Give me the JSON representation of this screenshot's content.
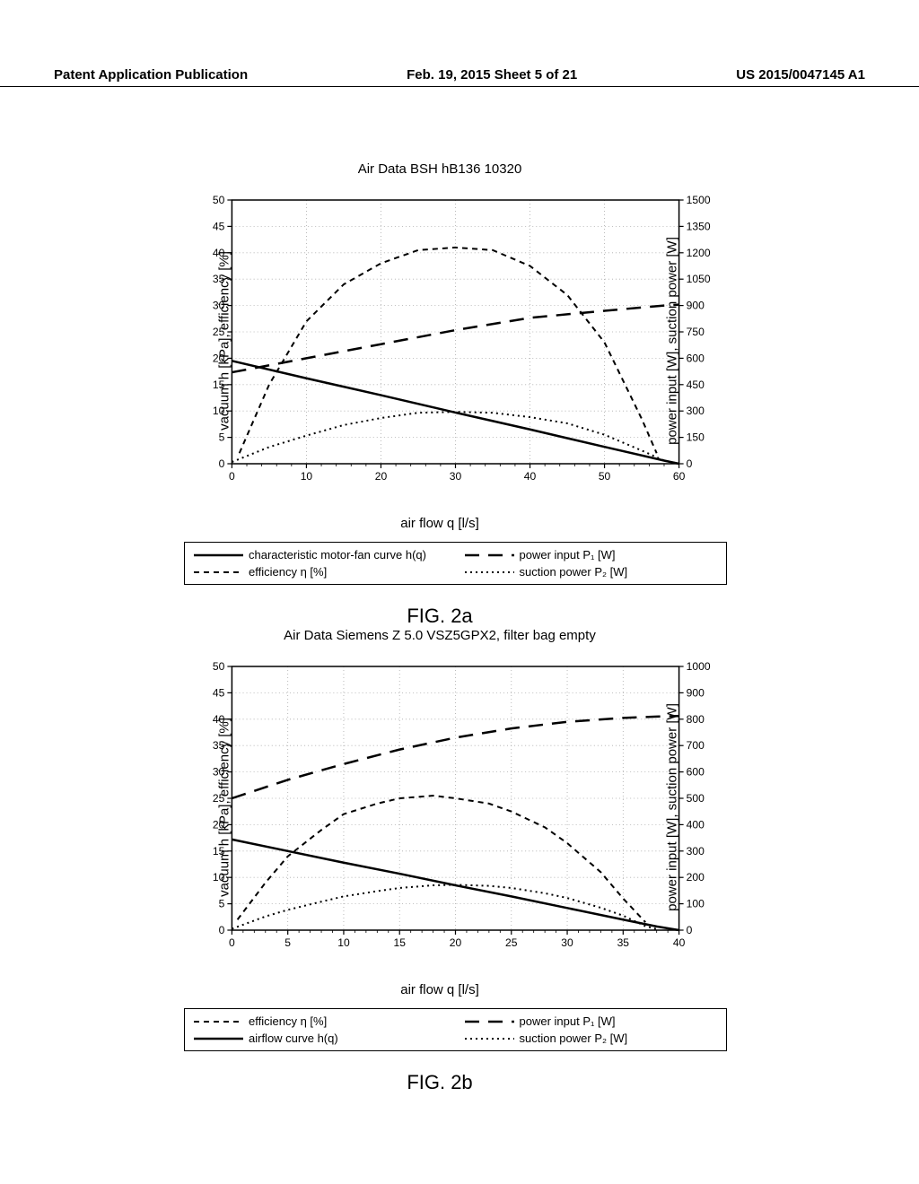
{
  "header": {
    "left": "Patent Application Publication",
    "center": "Feb. 19, 2015  Sheet 5 of 21",
    "right": "US 2015/0047145 A1"
  },
  "chart_a": {
    "title": "Air Data BSH hB136 10320",
    "fig_label": "FIG. 2a",
    "x_axis": {
      "label": "air flow q [l/s]",
      "min": 0,
      "max": 60,
      "ticks": [
        0,
        10,
        20,
        30,
        40,
        50,
        60
      ]
    },
    "y_left": {
      "label": "vacuum h [kPa], efficiency [%]",
      "min": 0,
      "max": 50,
      "ticks": [
        0,
        5,
        10,
        15,
        20,
        25,
        30,
        35,
        40,
        45,
        50
      ]
    },
    "y_right": {
      "label": "power input [W], suction power [W]",
      "min": 0,
      "max": 1500,
      "ticks": [
        0,
        150,
        300,
        450,
        600,
        750,
        900,
        1050,
        1200,
        1350,
        1500
      ]
    },
    "colors": {
      "line": "#000000",
      "grid": "#aaaaaa",
      "background": "#ffffff"
    },
    "series": {
      "hq": {
        "label": "characteristic motor-fan curve h(q)",
        "dash": "solid",
        "width": 2.5,
        "yscale": "left",
        "data": [
          [
            0,
            19.5
          ],
          [
            10,
            16.2
          ],
          [
            20,
            13
          ],
          [
            30,
            9.7
          ],
          [
            40,
            6.5
          ],
          [
            50,
            3.2
          ],
          [
            58,
            0.6
          ],
          [
            60,
            0
          ]
        ]
      },
      "efficiency": {
        "label": "efficiency η [%]",
        "dash": "short",
        "width": 2,
        "yscale": "left",
        "data": [
          [
            1,
            2
          ],
          [
            5,
            15
          ],
          [
            10,
            27
          ],
          [
            15,
            34
          ],
          [
            20,
            38
          ],
          [
            25,
            40.5
          ],
          [
            30,
            41
          ],
          [
            35,
            40.5
          ],
          [
            40,
            37.5
          ],
          [
            45,
            32
          ],
          [
            50,
            23
          ],
          [
            55,
            8.5
          ],
          [
            57,
            2
          ]
        ]
      },
      "power_input": {
        "label": "power input P₁ [W]",
        "dash": "long",
        "width": 2.5,
        "yscale": "right",
        "data": [
          [
            0,
            520
          ],
          [
            10,
            600
          ],
          [
            20,
            680
          ],
          [
            30,
            760
          ],
          [
            40,
            830
          ],
          [
            50,
            870
          ],
          [
            58,
            900
          ],
          [
            60,
            905
          ]
        ]
      },
      "suction_power": {
        "label": "suction power P₂ [W]",
        "dash": "dot",
        "width": 2,
        "yscale": "right",
        "data": [
          [
            0,
            10
          ],
          [
            5,
            95
          ],
          [
            10,
            160
          ],
          [
            15,
            220
          ],
          [
            20,
            260
          ],
          [
            25,
            290
          ],
          [
            30,
            295
          ],
          [
            35,
            290
          ],
          [
            40,
            265
          ],
          [
            45,
            230
          ],
          [
            50,
            165
          ],
          [
            55,
            75
          ],
          [
            58,
            18
          ],
          [
            60,
            0
          ]
        ]
      }
    },
    "legend_order": [
      "hq",
      "power_input",
      "efficiency",
      "suction_power"
    ]
  },
  "chart_b": {
    "title": "Air Data Siemens Z 5.0 VSZ5GPX2, filter bag empty",
    "fig_label": "FIG. 2b",
    "x_axis": {
      "label": "air flow q [l/s]",
      "min": 0,
      "max": 40,
      "ticks": [
        0,
        5,
        10,
        15,
        20,
        25,
        30,
        35,
        40
      ]
    },
    "y_left": {
      "label": "vacuum h [kPa], efficiency [%]",
      "min": 0,
      "max": 50,
      "ticks": [
        0,
        5,
        10,
        15,
        20,
        25,
        30,
        35,
        40,
        45,
        50
      ]
    },
    "y_right": {
      "label": "power input [W], suction power [W]",
      "min": 0,
      "max": 1000,
      "ticks": [
        0,
        100,
        200,
        300,
        400,
        500,
        600,
        700,
        800,
        900,
        1000
      ]
    },
    "colors": {
      "line": "#000000",
      "grid": "#aaaaaa",
      "background": "#ffffff"
    },
    "series": {
      "efficiency": {
        "label": "efficiency η [%]",
        "dash": "short",
        "width": 2,
        "yscale": "left",
        "data": [
          [
            0.5,
            2
          ],
          [
            3,
            9
          ],
          [
            5,
            14
          ],
          [
            8,
            19
          ],
          [
            10,
            22
          ],
          [
            13,
            24
          ],
          [
            15,
            25
          ],
          [
            18,
            25.5
          ],
          [
            20,
            25
          ],
          [
            23,
            24
          ],
          [
            25,
            22.5
          ],
          [
            28,
            19.5
          ],
          [
            30,
            16.5
          ],
          [
            33,
            11
          ],
          [
            35,
            6
          ],
          [
            37,
            1.5
          ]
        ]
      },
      "hq": {
        "label": "airflow curve h(q)",
        "dash": "solid",
        "width": 2.5,
        "yscale": "left",
        "data": [
          [
            0,
            17.2
          ],
          [
            5,
            15
          ],
          [
            10,
            12.8
          ],
          [
            15,
            10.7
          ],
          [
            20,
            8.5
          ],
          [
            25,
            6.4
          ],
          [
            30,
            4.2
          ],
          [
            35,
            2
          ],
          [
            38,
            0.7
          ],
          [
            40,
            0
          ]
        ]
      },
      "power_input": {
        "label": "power input P₁ [W]",
        "dash": "long",
        "width": 2.5,
        "yscale": "right",
        "data": [
          [
            0,
            500
          ],
          [
            5,
            570
          ],
          [
            10,
            630
          ],
          [
            15,
            685
          ],
          [
            20,
            730
          ],
          [
            25,
            765
          ],
          [
            30,
            790
          ],
          [
            35,
            805
          ],
          [
            38,
            810
          ],
          [
            40,
            812
          ]
        ]
      },
      "suction_power": {
        "label": "suction power P₂ [W]",
        "dash": "dot",
        "width": 2,
        "yscale": "right",
        "data": [
          [
            0,
            5
          ],
          [
            3,
            52
          ],
          [
            5,
            77
          ],
          [
            8,
            108
          ],
          [
            10,
            128
          ],
          [
            13,
            148
          ],
          [
            15,
            160
          ],
          [
            18,
            170
          ],
          [
            20,
            172
          ],
          [
            23,
            168
          ],
          [
            25,
            160
          ],
          [
            28,
            140
          ],
          [
            30,
            122
          ],
          [
            33,
            85
          ],
          [
            35,
            55
          ],
          [
            37,
            15
          ],
          [
            38,
            4
          ]
        ]
      }
    },
    "legend_order": [
      "efficiency",
      "power_input",
      "hq",
      "suction_power"
    ]
  }
}
